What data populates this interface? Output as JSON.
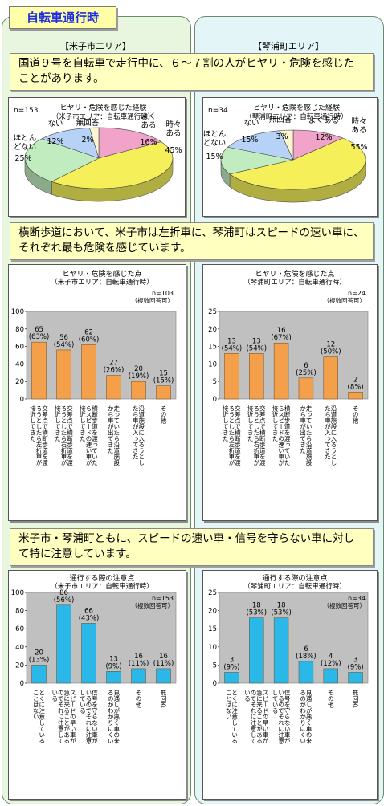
{
  "page_title": "自転車通行時",
  "columns": {
    "left_title": "【米子市エリア】",
    "right_title": "【琴浦町エリア】"
  },
  "headlines": {
    "h1": "国道９号を自転車で走行中に、６～７割の人がヒヤリ・危険を感じたことがあります。",
    "h2": "横断歩道において、米子市は左折車に、琴浦町はスピードの速い車に、それぞれ最も危険を感じています。",
    "h3": "米子市・琴浦町ともに、スピードの速い車・信号を守らない車に対して特に注意しています。"
  },
  "colors": {
    "pie": [
      "#f2a3c9",
      "#f5f05a",
      "#c0ecbf",
      "#b7d2f7",
      "#fbf6cf"
    ],
    "bar_orange": "#f4a04a",
    "bar_cyan": "#29b8e8",
    "plot_bg": "#c0c0c0"
  },
  "chart_data": [
    {
      "type": "pie",
      "title": "ヒヤリ・危険を感じた経験",
      "subtitle": "（米子市エリア：自転車通行時）",
      "n_label": "n=153",
      "slices": [
        {
          "label": "よくある",
          "value": 16,
          "text": "16%"
        },
        {
          "label": "時々ある",
          "value": 45,
          "text": "45%"
        },
        {
          "label": "ほとんどない",
          "value": 25,
          "text": "25%"
        },
        {
          "label": "ない",
          "value": 12,
          "text": "12%"
        },
        {
          "label": "無回答",
          "value": 2,
          "text": "2%"
        }
      ]
    },
    {
      "type": "pie",
      "title": "ヒヤリ・危険を感じた経験",
      "subtitle": "（琴浦町エリア：自転車通行時）",
      "n_label": "n=34",
      "slices": [
        {
          "label": "よくある",
          "value": 12,
          "text": "12%"
        },
        {
          "label": "時々ある",
          "value": 55,
          "text": "55%"
        },
        {
          "label": "ほとんどない",
          "value": 15,
          "text": "15%"
        },
        {
          "label": "ない",
          "value": 15,
          "text": "15%"
        },
        {
          "label": "無回答",
          "value": 3,
          "text": "3%"
        }
      ]
    },
    {
      "type": "bar",
      "title": "ヒヤリ・危険を感じた点",
      "subtitle": "（米子市エリア：自転車通行時）",
      "n_label": "n=103",
      "n_note": "（複数回答可）",
      "ylim": [
        0,
        100
      ],
      "yticks": [
        0,
        20,
        40,
        60,
        80,
        100
      ],
      "categories": [
        "交差点で横断歩道を渡ろうとしたら左折車が接近してきた",
        "交差点で横断歩道を渡ろうとしたら右折車が接近してきた",
        "横断歩道を渡っていたらスピードの速い車が接近してきた",
        "走っていたら沿道施設から車が出てきた",
        "沿道施設に入ろうとしたら車が入ってきた",
        "その他"
      ],
      "values": [
        65,
        56,
        62,
        27,
        20,
        15
      ],
      "labels": [
        "65(63%)",
        "56(54%)",
        "62(60%)",
        "27(26%)",
        "20(19%)",
        "15(15%)"
      ]
    },
    {
      "type": "bar",
      "title": "ヒヤリ・危険を感じた点",
      "subtitle": "（琴浦町エリア：自転車通行時）",
      "n_label": "n=24",
      "n_note": "（複数回答可）",
      "ylim": [
        0,
        25
      ],
      "yticks": [
        0,
        5,
        10,
        15,
        20,
        25
      ],
      "categories": [
        "交差点で横断歩道を渡ろうとしたら左折車が接近してきた",
        "交差点で横断歩道を渡ろうとしたら右折車が接近してきた",
        "横断歩道を渡っていたらスピードの速い車が接近してきた",
        "走っていたら沿道施設から車が出てきた",
        "沿道施設に入ろうとしたら車が入ってきた",
        "その他"
      ],
      "values": [
        13,
        13,
        16,
        6,
        12,
        2
      ],
      "labels": [
        "13(54%)",
        "13(54%)",
        "16(67%)",
        "6(25%)",
        "12(50%)",
        "2(8%)"
      ]
    },
    {
      "type": "bar",
      "title": "通行する際の注意点",
      "subtitle": "（米子市エリア：自転車通行時）",
      "n_label": "n=153",
      "n_note": "（複数回答可）",
      "ylim": [
        0,
        100
      ],
      "yticks": [
        0,
        20,
        40,
        60,
        80,
        100
      ],
      "categories": [
        "とくに注意していることはない",
        "スピードの早い車が急に来ることがあるのでそれに注意している",
        "信号を守らない車がいるのでそれに注意している",
        "見通しが悪く車の来るのがわかりにくい",
        "その他",
        "無回答"
      ],
      "values": [
        20,
        86,
        66,
        13,
        16,
        16
      ],
      "labels": [
        "20(13%)",
        "86(56%)",
        "66(43%)",
        "13(9%)",
        "16(11%)",
        "16(11%)"
      ]
    },
    {
      "type": "bar",
      "title": "通行する際の注意点",
      "subtitle": "（琴浦町エリア：自転車通行時）",
      "n_label": "n=34",
      "n_note": "（複数回答可）",
      "ylim": [
        0,
        25
      ],
      "yticks": [
        0,
        5,
        10,
        15,
        20,
        25
      ],
      "categories": [
        "とくに注意していることはない",
        "スピードの早い車が急に来ることがあるのでそれに注意している",
        "信号を守らない車がいるのでそれに注意している",
        "見通しが悪く車の来るのがわかりにくい",
        "その他",
        "無回答"
      ],
      "values": [
        3,
        18,
        18,
        6,
        4,
        3
      ],
      "labels": [
        "3(9%)",
        "18(53%)",
        "18(53%)",
        "6(18%)",
        "4(12%)",
        "3(9%)"
      ]
    }
  ]
}
